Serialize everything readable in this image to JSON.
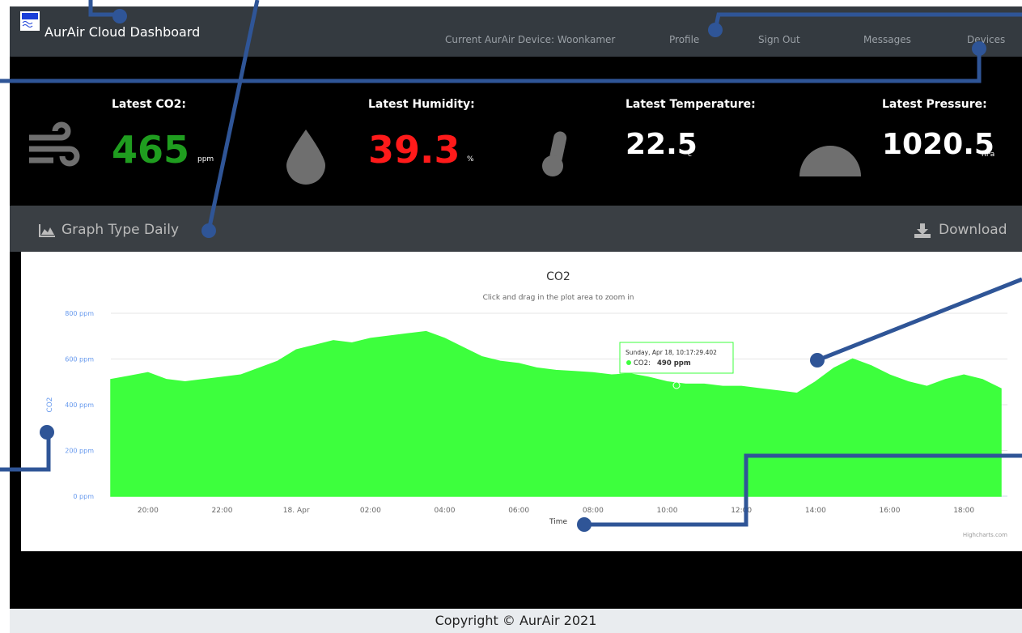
{
  "navbar": {
    "brand": "AurAir Cloud Dashboard",
    "device": "Current AurAir Device: Woonkamer",
    "links": [
      "Profile",
      "Sign Out",
      "Messages",
      "Devices"
    ]
  },
  "stats": [
    {
      "label": "Latest CO2:",
      "value": "465",
      "unit": "ppm",
      "color": "#1f9d1f"
    },
    {
      "label": "Latest Humidity:",
      "value": "39.3",
      "unit": "%",
      "color": "#ff1a1a"
    },
    {
      "label": "Latest Temperature:",
      "value": "22.5",
      "unit": "c",
      "color": "#ffffff"
    },
    {
      "label": "Latest Pressure:",
      "value": "1020.5",
      "unit": "hPa",
      "color": "#ffffff"
    }
  ],
  "panel": {
    "title": "Graph Type Daily",
    "download": "Download"
  },
  "chart_data": {
    "type": "area",
    "title": "CO2",
    "subtitle": "Click and drag in the plot area to zoom in",
    "x_label": "Time",
    "y_label": "CO2",
    "credit": "Highcharts.com",
    "categories": [
      null,
      null,
      "20:00",
      null,
      null,
      null,
      "22:00",
      null,
      null,
      null,
      "18. Apr",
      null,
      null,
      null,
      "02:00",
      null,
      null,
      null,
      "04:00",
      null,
      null,
      null,
      "06:00",
      null,
      null,
      null,
      "08:00",
      null,
      null,
      null,
      "10:00",
      null,
      null,
      null,
      "12:00",
      null,
      null,
      null,
      "14:00",
      null,
      null,
      null,
      "16:00",
      null,
      null,
      null,
      "18:00",
      null,
      null
    ],
    "series": [
      {
        "name": "CO2",
        "color": "#3dff3d",
        "values": [
          510,
          525,
          540,
          510,
          500,
          510,
          520,
          530,
          560,
          590,
          640,
          660,
          680,
          670,
          690,
          700,
          710,
          720,
          690,
          650,
          610,
          590,
          580,
          560,
          550,
          545,
          540,
          530,
          535,
          520,
          500,
          490,
          490,
          480,
          480,
          470,
          460,
          450,
          500,
          560,
          600,
          570,
          530,
          500,
          480,
          510,
          530,
          510,
          470
        ]
      }
    ],
    "ylim": [
      0,
      800
    ],
    "yticks": [
      {
        "value": 0,
        "label": "0 ppm"
      },
      {
        "value": 200,
        "label": "200 ppm"
      },
      {
        "value": 400,
        "label": "400 ppm"
      },
      {
        "value": 600,
        "label": "600 ppm"
      },
      {
        "value": 800,
        "label": "800 ppm"
      }
    ],
    "grid": true,
    "tooltip": {
      "header": "Sunday, Apr 18, 10:17:29.402",
      "label": "CO2:",
      "value": "490 ppm"
    }
  },
  "footer": "Copyright © AurAir 2021"
}
